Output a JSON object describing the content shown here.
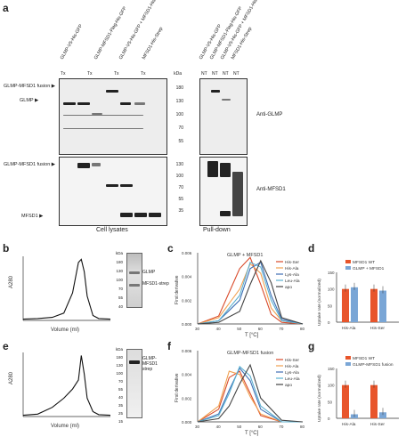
{
  "panels": {
    "a": {
      "letter": "a",
      "lanes": [
        "GLMP-V5-His-GFP",
        "GLMP-MFSD1-Flag-His-GFP",
        "GLMP-V5-His-GFP + MFSD1-His-Strep",
        "MFSD1-His-Strep",
        "GLMP-V5-His-GFP",
        "GLMP-MFSD1-Flag-His-GFP",
        "GLMP-V5-His-GFP + MFSD1-His-Strep",
        "MFSD1-His-Strep"
      ],
      "lane_sub": [
        "Tx",
        "Tx",
        "Tx",
        "Tx",
        "NT",
        "NT",
        "NT",
        "NT"
      ],
      "markers_label": "kDa",
      "markers_top": [
        "180",
        "130",
        "100",
        "70",
        "55"
      ],
      "markers_bottom": [
        "130",
        "100",
        "70",
        "55",
        "35"
      ],
      "top_arrows": [
        "GLMP-MFSD1 fusion",
        "GLMP"
      ],
      "bottom_arrows": [
        "GLMP-MFSD1 fusion",
        "MFSD1"
      ],
      "antibody_top": "Anti-GLMP",
      "antibody_bottom": "Anti-MFSD1",
      "footer_left": "Cell lysates",
      "footer_right": "Pull-down"
    },
    "b": {
      "letter": "b",
      "ylabel": "A280",
      "xlabel": "Volume (ml)",
      "gel_markers": [
        "kDa",
        "180",
        "130",
        "100",
        "70",
        "55",
        "40"
      ],
      "gel_labels": [
        "GLMP",
        "MFSD1-strep"
      ]
    },
    "c": {
      "letter": "c",
      "title": "GLMP + MFSD1",
      "ylabel": "First derivative",
      "xlabel": "T [°C]",
      "legend": [
        "His-Ser",
        "His-Ala",
        "Lys-Ala",
        "Leu-Ala",
        "apo"
      ]
    },
    "d": {
      "letter": "d",
      "legend": [
        "MFSD1 WT",
        "GLMP + MFSD1"
      ],
      "ylabel": "Uptake rate (normalized)",
      "categories": [
        "His-Ala",
        "His-Ser"
      ]
    },
    "e": {
      "letter": "e",
      "ylabel": "A280",
      "xlabel": "Volume (ml)",
      "gel_markers": [
        "kDa",
        "180",
        "130",
        "100",
        "70",
        "55",
        "40",
        "35",
        "25",
        "15"
      ],
      "gel_labels": [
        "GLMP-MFSD1 strep"
      ]
    },
    "f": {
      "letter": "f",
      "title": "GLMP-MFSD1 fusion",
      "ylabel": "First derivative",
      "xlabel": "T [°C]",
      "legend": [
        "His-Ser",
        "His-Ala",
        "Lys-Ala",
        "Leu-Ala",
        "apo"
      ]
    },
    "g": {
      "letter": "g",
      "legend": [
        "MFSD1 WT",
        "GLMP-MFSD1 fusion"
      ],
      "ylabel": "Uptake rate (normalized)",
      "categories": [
        "His-Ala",
        "His-Ser"
      ]
    }
  },
  "colors": {
    "orange": "#e8552b",
    "blue": "#7aa6d6",
    "his_ser": "#d94a2a",
    "his_ala": "#f0a050",
    "lys_ala": "#3f6fb5",
    "leu_ala": "#5bb0d0",
    "apo": "#444444"
  },
  "chart_data": [
    {
      "type": "line",
      "panel": "b",
      "x": [
        0,
        0.5,
        1,
        1.4,
        1.7,
        1.9,
        2.0,
        2.1,
        2.2,
        2.4,
        2.6,
        3.0
      ],
      "y": [
        0.02,
        0.03,
        0.05,
        0.12,
        0.45,
        0.95,
        1.0,
        0.8,
        0.4,
        0.08,
        0.03,
        0.02
      ],
      "xlabel": "Volume (ml)",
      "ylabel": "A280"
    },
    {
      "type": "line",
      "panel": "c",
      "title": "GLMP + MFSD1",
      "x": [
        30,
        40,
        50,
        55,
        60,
        65,
        70,
        80
      ],
      "series": [
        {
          "name": "His-Ser",
          "values": [
            0.0,
            0.5,
            3.5,
            4.2,
            2.5,
            0.6,
            0.1,
            0.0
          ]
        },
        {
          "name": "His-Ala",
          "values": [
            0.0,
            0.4,
            2.2,
            3.8,
            3.2,
            1.0,
            0.2,
            0.0
          ]
        },
        {
          "name": "Lys-Ala",
          "values": [
            0.0,
            0.2,
            1.5,
            3.5,
            3.9,
            1.8,
            0.3,
            0.0
          ]
        },
        {
          "name": "Leu-Ala",
          "values": [
            0.0,
            0.2,
            1.8,
            3.9,
            3.6,
            1.5,
            0.2,
            0.0
          ]
        },
        {
          "name": "apo",
          "values": [
            0.0,
            0.1,
            0.8,
            2.5,
            4.0,
            2.6,
            0.4,
            0.0
          ]
        }
      ],
      "xlabel": "T [°C]",
      "ylabel": "First derivative",
      "yticks": [
        "0.000",
        "0.002",
        "0.004",
        "0.006"
      ]
    },
    {
      "type": "bar",
      "panel": "d",
      "categories": [
        "His-Ala",
        "His-Ser"
      ],
      "series": [
        {
          "name": "MFSD1 WT",
          "values": [
            100,
            100
          ]
        },
        {
          "name": "GLMP + MFSD1",
          "values": [
            105,
            95
          ]
        }
      ],
      "ylim": [
        0,
        150
      ],
      "yticks": [
        "0",
        "50",
        "100",
        "150"
      ]
    },
    {
      "type": "line",
      "panel": "e",
      "x": [
        0,
        0.5,
        1,
        1.4,
        1.7,
        1.9,
        2.0,
        2.1,
        2.2,
        2.4,
        2.6,
        3.0
      ],
      "y": [
        0.02,
        0.04,
        0.15,
        0.3,
        0.45,
        0.6,
        1.0,
        0.7,
        0.3,
        0.08,
        0.03,
        0.02
      ],
      "xlabel": "Volume (ml)",
      "ylabel": "A280"
    },
    {
      "type": "line",
      "panel": "f",
      "title": "GLMP-MFSD1 fusion",
      "x": [
        30,
        40,
        45,
        50,
        55,
        60,
        70,
        80
      ],
      "series": [
        {
          "name": "His-Ser",
          "values": [
            0.0,
            0.8,
            2.8,
            3.2,
            1.8,
            0.4,
            0.0,
            0.0
          ]
        },
        {
          "name": "His-Ala",
          "values": [
            0.0,
            1.0,
            3.2,
            3.0,
            1.6,
            0.5,
            0.0,
            0.0
          ]
        },
        {
          "name": "Lys-Ala",
          "values": [
            0.0,
            0.5,
            2.0,
            3.4,
            2.6,
            0.8,
            0.0,
            0.0
          ]
        },
        {
          "name": "Leu-Ala",
          "values": [
            0.0,
            0.4,
            1.8,
            3.5,
            2.9,
            1.0,
            0.0,
            0.0
          ]
        },
        {
          "name": "apo",
          "values": [
            0.0,
            0.2,
            1.0,
            2.4,
            3.6,
            1.5,
            0.1,
            0.0
          ]
        }
      ],
      "xlabel": "T [°C]",
      "ylabel": "First derivative",
      "yticks": [
        "0.000",
        "0.002",
        "0.004",
        "0.006"
      ]
    },
    {
      "type": "bar",
      "panel": "g",
      "categories": [
        "His-Ala",
        "His-Ser"
      ],
      "series": [
        {
          "name": "MFSD1 WT",
          "values": [
            100,
            100
          ]
        },
        {
          "name": "GLMP-MFSD1 fusion",
          "values": [
            12,
            18
          ]
        }
      ],
      "ylim": [
        0,
        150
      ],
      "yticks": [
        "0",
        "50",
        "100",
        "150"
      ]
    }
  ]
}
